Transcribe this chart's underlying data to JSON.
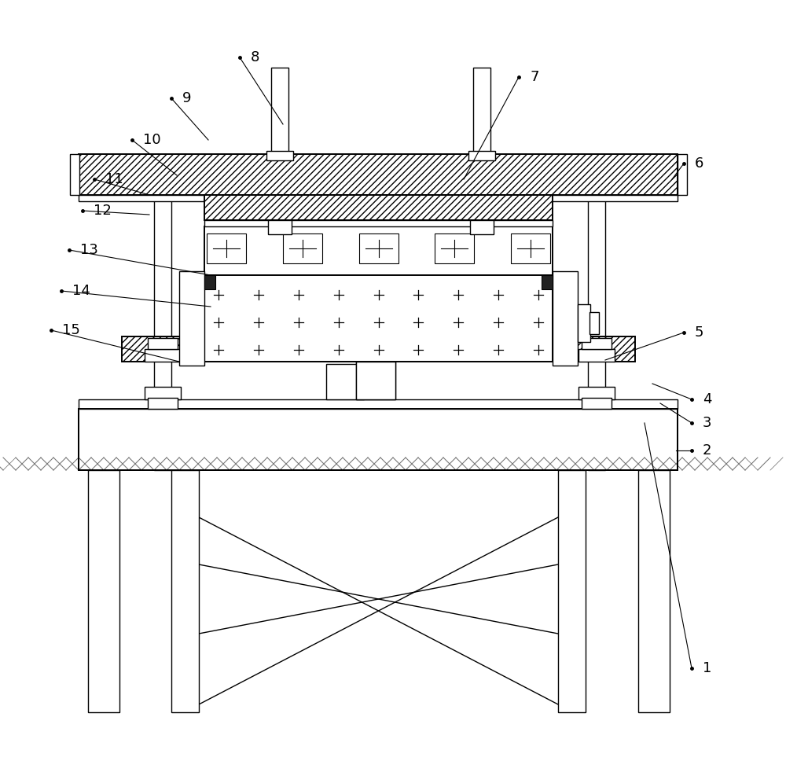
{
  "bg_color": "#ffffff",
  "lc": "#000000",
  "figsize": [
    10.0,
    9.68
  ],
  "dpi": 100,
  "labels_data": [
    [
      "1",
      880,
      118,
      820,
      430
    ],
    [
      "2",
      880,
      395,
      860,
      395
    ],
    [
      "3",
      880,
      430,
      840,
      455
    ],
    [
      "4",
      880,
      460,
      830,
      480
    ],
    [
      "5",
      870,
      545,
      770,
      510
    ],
    [
      "6",
      870,
      760,
      855,
      740
    ],
    [
      "7",
      660,
      870,
      590,
      740
    ],
    [
      "8",
      305,
      895,
      360,
      810
    ],
    [
      "9",
      218,
      843,
      265,
      790
    ],
    [
      "10",
      168,
      790,
      225,
      745
    ],
    [
      "11",
      120,
      740,
      190,
      720
    ],
    [
      "12",
      105,
      700,
      190,
      695
    ],
    [
      "13",
      88,
      650,
      268,
      618
    ],
    [
      "14",
      78,
      598,
      268,
      578
    ],
    [
      "15",
      65,
      548,
      228,
      508
    ]
  ]
}
